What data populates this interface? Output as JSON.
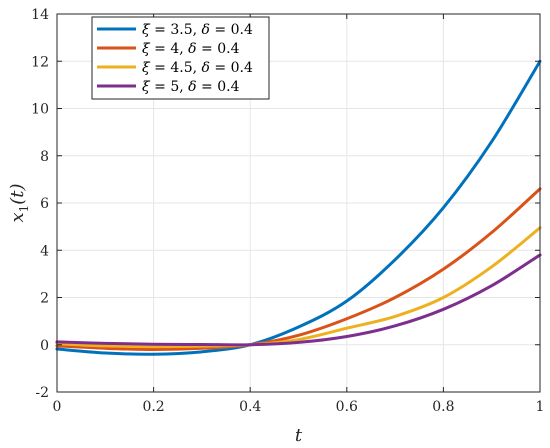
{
  "chart_data": {
    "type": "line",
    "xlabel": "t",
    "ylabel": "x_1(t)",
    "ylabel_parts": {
      "var": "x",
      "sub": "1",
      "arg": "(t)"
    },
    "xlim": [
      0,
      1
    ],
    "ylim": [
      -2,
      14
    ],
    "xticks": [
      0,
      0.2,
      0.4,
      0.6,
      0.8,
      1
    ],
    "yticks": [
      -2,
      0,
      2,
      4,
      6,
      8,
      10,
      12,
      14
    ],
    "xtick_labels": [
      "0",
      "0.2",
      "0.4",
      "0.6",
      "0.8",
      "1"
    ],
    "ytick_labels": [
      "-2",
      "0",
      "2",
      "4",
      "6",
      "8",
      "10",
      "12",
      "14"
    ],
    "grid": true,
    "legend_position": "top-left",
    "x": [
      0,
      0.1,
      0.2,
      0.3,
      0.4,
      0.5,
      0.6,
      0.7,
      0.8,
      0.9,
      1.0
    ],
    "series": [
      {
        "name": "ξ = 3.5,  δ = 0.4",
        "xi": "3.5",
        "delta": "0.4",
        "color": "#0072BD",
        "values": [
          -0.18,
          -0.35,
          -0.4,
          -0.3,
          0.0,
          0.75,
          1.85,
          3.6,
          5.8,
          8.6,
          12.0
        ]
      },
      {
        "name": "ξ = 4,  δ = 0.4",
        "xi": "4",
        "delta": "0.4",
        "color": "#D95319",
        "values": [
          -0.05,
          -0.15,
          -0.2,
          -0.15,
          0.0,
          0.4,
          1.1,
          2.0,
          3.2,
          4.75,
          6.6
        ]
      },
      {
        "name": "ξ = 4.5,  δ = 0.4",
        "xi": "4.5",
        "delta": "0.4",
        "color": "#EDB120",
        "values": [
          0.05,
          -0.05,
          -0.08,
          -0.06,
          0.0,
          0.22,
          0.7,
          1.2,
          2.0,
          3.3,
          4.95
        ]
      },
      {
        "name": "ξ = 5,  δ = 0.4",
        "xi": "5",
        "delta": "0.4",
        "color": "#7E2F8E",
        "values": [
          0.12,
          0.06,
          0.02,
          0.01,
          0.0,
          0.1,
          0.35,
          0.8,
          1.5,
          2.5,
          3.8
        ]
      }
    ]
  }
}
